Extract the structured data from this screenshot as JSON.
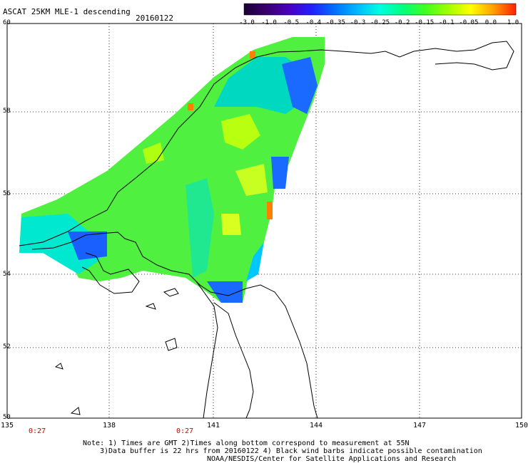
{
  "header": {
    "title": "ASCAT 25KM MLE-1 descending",
    "date": "20160122"
  },
  "colorbar": {
    "labels": [
      "-3.0",
      "-1.0",
      "-0.5",
      "-0.4",
      "-0.35",
      "-0.3",
      "-0.25",
      "-0.2",
      "-0.15",
      "-0.1",
      "-0.05",
      "0.0",
      "1.0"
    ],
    "colors": [
      "#1a0033",
      "#3a0070",
      "#4a00c0",
      "#2020ff",
      "#0070ff",
      "#00b8ff",
      "#00ffe0",
      "#00ff80",
      "#40ff20",
      "#a0ff00",
      "#ffff00",
      "#ffa000",
      "#ff2000"
    ]
  },
  "map": {
    "lat_labels": [
      "60",
      "58",
      "56",
      "54",
      "52",
      "50"
    ],
    "lon_labels": [
      "135",
      "138",
      "141",
      "144",
      "147",
      "150"
    ],
    "time_labels": [
      "0:27",
      "0:27"
    ],
    "time_colors": "#d40000",
    "land_outline_color": "#000000",
    "grid_color": "#000000"
  },
  "footer": {
    "note1": "Note: 1) Times are GMT 2)Times along bottom correspond to measurement at 55N",
    "note2": "3)Data buffer is 22 hrs from 20160122 4) Black wind barbs indicate possible contamination",
    "note3": "NOAA/NESDIS/Center for Satellite Applications and Research"
  }
}
